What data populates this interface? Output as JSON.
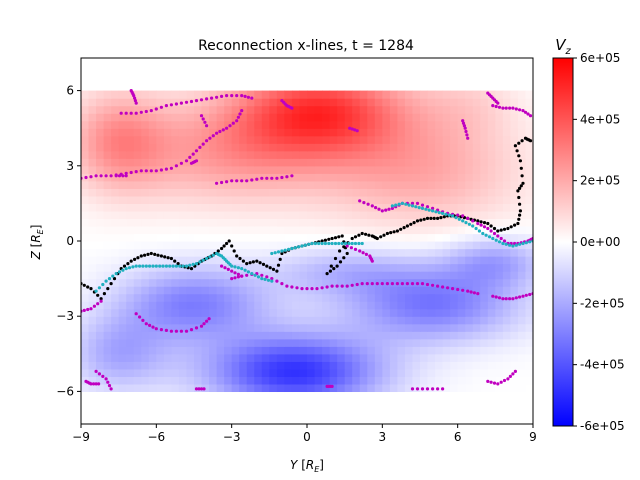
{
  "chart_data": {
    "type": "heatmap",
    "title": "Reconnection x-lines, t = 1284",
    "xlabel": "Y [R_E]",
    "ylabel": "Z [R_E]",
    "xlim": [
      -9,
      9
    ],
    "ylim": [
      -7.3,
      7.3
    ],
    "field_extent": {
      "y": [
        -9,
        9
      ],
      "z": [
        -6,
        6
      ]
    },
    "xticks": [
      -9,
      -6,
      -3,
      0,
      3,
      6,
      9
    ],
    "xtick_labels": [
      "−9",
      "−6",
      "−3",
      "0",
      "3",
      "6",
      "9"
    ],
    "yticks": [
      6,
      3,
      0,
      -3,
      -6
    ],
    "ytick_labels": [
      "6",
      "3",
      "0",
      "−3",
      "−6"
    ],
    "colorbar": {
      "label": "V_z",
      "colormap": "bwr",
      "min": -600000,
      "max": 600000,
      "ticks": [
        600000,
        400000,
        200000,
        0,
        -200000,
        -400000,
        -600000
      ],
      "tick_labels": [
        "6e+05",
        "4e+05",
        "2e+05",
        "0e+00",
        "-2e+05",
        "-4e+05",
        "-6e+05"
      ]
    },
    "colors": {
      "negative": "#0000ff",
      "zero": "#ffffff",
      "positive": "#ff0000"
    },
    "field_features": [
      {
        "y": 0.5,
        "z": 5.2,
        "value": 450000,
        "width": 3.5,
        "height": 1.8
      },
      {
        "y": -3.0,
        "z": 3.5,
        "value": 220000,
        "width": 4.0,
        "height": 2.0
      },
      {
        "y": 4.5,
        "z": 2.8,
        "value": 200000,
        "width": 4.0,
        "height": 2.2
      },
      {
        "y": -7.5,
        "z": 4.0,
        "value": 250000,
        "width": 2.0,
        "height": 2.0
      },
      {
        "y": 6.5,
        "z": 5.5,
        "value": 80000,
        "width": 2.0,
        "height": 1.5
      },
      {
        "y": -0.5,
        "z": -5.2,
        "value": -480000,
        "width": 3.5,
        "height": 1.5
      },
      {
        "y": -4.5,
        "z": -2.5,
        "value": -300000,
        "width": 3.0,
        "height": 1.5
      },
      {
        "y": 5.0,
        "z": -2.5,
        "value": -320000,
        "width": 3.5,
        "height": 1.5
      },
      {
        "y": 1.5,
        "z": -1.2,
        "value": -150000,
        "width": 3.0,
        "height": 1.0
      },
      {
        "y": 7.5,
        "z": -0.8,
        "value": -200000,
        "width": 2.0,
        "height": 1.0
      },
      {
        "y": -7.5,
        "z": -4.5,
        "value": -200000,
        "width": 2.0,
        "height": 1.5
      }
    ],
    "series": [
      {
        "color": "#000000",
        "points": [
          [
            -9.0,
            -1.7
          ],
          [
            -8.6,
            -1.9
          ],
          [
            -8.2,
            -2.3
          ],
          [
            -7.8,
            -1.7
          ],
          [
            -7.4,
            -1.1
          ],
          [
            -7.0,
            -0.8
          ],
          [
            -6.6,
            -0.6
          ],
          [
            -6.2,
            -0.5
          ],
          [
            -5.8,
            -0.6
          ],
          [
            -5.4,
            -0.7
          ],
          [
            -5.0,
            -1.0
          ],
          [
            -4.6,
            -1.1
          ],
          [
            -4.2,
            -0.8
          ],
          [
            -3.8,
            -0.6
          ],
          [
            -3.4,
            -0.3
          ],
          [
            -3.1,
            0.0
          ],
          [
            -2.8,
            -0.6
          ],
          [
            -2.4,
            -0.9
          ],
          [
            -2.0,
            -0.8
          ],
          [
            -1.6,
            -1.0
          ],
          [
            -1.2,
            -1.2
          ],
          [
            -1.0,
            -0.5
          ],
          [
            -0.6,
            -0.3
          ],
          [
            -0.2,
            -0.2
          ],
          [
            0.2,
            -0.1
          ],
          [
            0.6,
            0.0
          ],
          [
            1.0,
            0.1
          ],
          [
            1.4,
            0.2
          ],
          [
            1.6,
            -0.5
          ],
          [
            1.2,
            -1.0
          ],
          [
            0.8,
            -1.3
          ],
          [
            1.3,
            -0.4
          ],
          [
            1.8,
            0.1
          ],
          [
            2.2,
            0.3
          ],
          [
            2.6,
            0.2
          ],
          [
            2.8,
            0.1
          ],
          [
            3.2,
            0.3
          ],
          [
            3.6,
            0.4
          ],
          [
            4.0,
            0.6
          ],
          [
            4.4,
            0.8
          ],
          [
            4.8,
            0.9
          ],
          [
            5.2,
            0.9
          ],
          [
            5.6,
            1.0
          ],
          [
            6.0,
            1.0
          ],
          [
            6.4,
            0.9
          ],
          [
            6.8,
            0.8
          ],
          [
            7.2,
            0.7
          ],
          [
            7.6,
            0.4
          ],
          [
            8.0,
            0.5
          ],
          [
            8.4,
            0.7
          ],
          [
            8.5,
            1.2
          ],
          [
            8.4,
            2.0
          ],
          [
            8.6,
            2.3
          ],
          [
            8.5,
            3.2
          ],
          [
            8.3,
            3.8
          ],
          [
            8.7,
            4.1
          ],
          [
            8.9,
            4.0
          ]
        ]
      },
      {
        "color": "#c000c0",
        "points": [
          [
            -9.0,
            2.5
          ],
          [
            -8.4,
            2.6
          ],
          [
            -7.8,
            2.6
          ],
          [
            -7.2,
            2.7
          ],
          [
            -6.6,
            2.8
          ],
          [
            -6.0,
            2.8
          ],
          [
            -5.4,
            2.9
          ],
          [
            -4.8,
            3.2
          ],
          [
            -4.4,
            3.6
          ],
          [
            -4.0,
            4.0
          ],
          [
            -3.6,
            4.3
          ],
          [
            -3.2,
            4.5
          ],
          [
            -2.8,
            4.8
          ],
          [
            -2.6,
            5.2
          ]
        ]
      },
      {
        "color": "#c000c0",
        "points": [
          [
            -7.4,
            5.1
          ],
          [
            -6.8,
            5.1
          ],
          [
            -6.2,
            5.2
          ],
          [
            -5.6,
            5.4
          ],
          [
            -5.0,
            5.5
          ],
          [
            -4.4,
            5.6
          ],
          [
            -3.8,
            5.7
          ],
          [
            -3.2,
            5.8
          ],
          [
            -2.6,
            5.8
          ],
          [
            -2.2,
            5.7
          ]
        ]
      },
      {
        "color": "#c000c0",
        "points": [
          [
            -3.6,
            2.3
          ],
          [
            -3.0,
            2.4
          ],
          [
            -2.4,
            2.4
          ],
          [
            -1.8,
            2.5
          ],
          [
            -1.2,
            2.5
          ],
          [
            -0.6,
            2.6
          ]
        ]
      },
      {
        "color": "#c000c0",
        "points": [
          [
            2.1,
            1.6
          ],
          [
            2.6,
            1.4
          ],
          [
            3.0,
            1.2
          ],
          [
            3.4,
            1.3
          ],
          [
            3.8,
            1.5
          ],
          [
            4.4,
            1.5
          ],
          [
            5.0,
            1.3
          ],
          [
            5.6,
            1.1
          ],
          [
            6.2,
            1.0
          ],
          [
            6.8,
            0.7
          ],
          [
            7.2,
            0.5
          ],
          [
            7.6,
            0.2
          ],
          [
            8.0,
            -0.1
          ],
          [
            8.4,
            -0.1
          ],
          [
            8.8,
            0.0
          ],
          [
            9.0,
            0.1
          ]
        ]
      },
      {
        "color": "#c000c0",
        "points": [
          [
            -3.0,
            -1.5
          ],
          [
            -2.6,
            -1.4
          ],
          [
            -2.0,
            -1.3
          ],
          [
            -1.4,
            -1.5
          ],
          [
            -0.8,
            -1.8
          ],
          [
            -0.2,
            -1.9
          ],
          [
            0.4,
            -1.9
          ],
          [
            1.0,
            -1.8
          ],
          [
            1.6,
            -1.8
          ],
          [
            2.2,
            -1.7
          ],
          [
            2.8,
            -1.7
          ],
          [
            3.4,
            -1.7
          ],
          [
            4.0,
            -1.7
          ],
          [
            4.6,
            -1.7
          ],
          [
            5.2,
            -1.8
          ],
          [
            5.8,
            -1.9
          ],
          [
            6.4,
            -2.0
          ],
          [
            6.8,
            -2.1
          ]
        ]
      },
      {
        "color": "#c000c0",
        "points": [
          [
            -6.8,
            -2.9
          ],
          [
            -6.4,
            -3.3
          ],
          [
            -6.0,
            -3.5
          ],
          [
            -5.4,
            -3.6
          ],
          [
            -4.8,
            -3.6
          ],
          [
            -4.2,
            -3.4
          ],
          [
            -3.9,
            -3.1
          ]
        ]
      },
      {
        "color": "#c000c0",
        "points": [
          [
            7.4,
            -2.2
          ],
          [
            7.8,
            -2.3
          ],
          [
            8.2,
            -2.3
          ],
          [
            8.6,
            -2.2
          ],
          [
            9.0,
            -2.1
          ]
        ]
      },
      {
        "color": "#c000c0",
        "points": [
          [
            -9.0,
            -2.8
          ],
          [
            -8.6,
            -2.7
          ],
          [
            -8.2,
            -2.4
          ]
        ]
      },
      {
        "color": "#c000c0",
        "points": [
          [
            6.2,
            4.8
          ],
          [
            6.3,
            4.5
          ],
          [
            6.4,
            4.1
          ]
        ]
      },
      {
        "color": "#c000c0",
        "points": [
          [
            7.4,
            5.4
          ],
          [
            7.8,
            5.3
          ],
          [
            8.2,
            5.3
          ],
          [
            8.6,
            5.2
          ],
          [
            8.9,
            5.0
          ]
        ]
      },
      {
        "color": "#c000c0",
        "points": [
          [
            7.2,
            5.9
          ],
          [
            7.4,
            5.7
          ],
          [
            7.6,
            5.5
          ]
        ]
      },
      {
        "color": "#c000c0",
        "points": [
          [
            -6.8,
            5.5
          ],
          [
            -6.9,
            5.8
          ],
          [
            -7.0,
            6.0
          ]
        ]
      },
      {
        "color": "#c000c0",
        "points": [
          [
            -8.4,
            -5.2
          ],
          [
            -8.0,
            -5.5
          ],
          [
            -7.8,
            -5.9
          ]
        ]
      },
      {
        "color": "#c000c0",
        "points": [
          [
            7.2,
            -5.6
          ],
          [
            7.6,
            -5.7
          ],
          [
            8.0,
            -5.5
          ],
          [
            8.3,
            -5.2
          ]
        ]
      },
      {
        "color": "#c000c0",
        "points": [
          [
            4.2,
            -5.9
          ],
          [
            4.8,
            -5.9
          ],
          [
            5.4,
            -5.9
          ]
        ]
      },
      {
        "color": "#c000c0",
        "points": [
          [
            -8.8,
            -5.6
          ],
          [
            -8.6,
            -5.7
          ],
          [
            -8.3,
            -5.7
          ]
        ]
      },
      {
        "color": "#c000c0",
        "points": [
          [
            1.6,
            -0.2
          ],
          [
            2.1,
            -0.4
          ],
          [
            2.5,
            -0.6
          ],
          [
            2.6,
            -0.8
          ]
        ]
      },
      {
        "color": "#c000c0",
        "points": [
          [
            -3.4,
            -1.0
          ],
          [
            -3.0,
            -1.2
          ],
          [
            -2.6,
            -1.4
          ]
        ]
      },
      {
        "color": "#c000c0",
        "points": [
          [
            -1.0,
            5.6
          ],
          [
            -0.8,
            5.4
          ],
          [
            -0.6,
            5.3
          ]
        ]
      },
      {
        "color": "#c000c0",
        "points": [
          [
            -4.6,
            3.1
          ],
          [
            -4.4,
            3.2
          ]
        ]
      },
      {
        "color": "#c000c0",
        "points": [
          [
            -7.6,
            2.6
          ],
          [
            -7.2,
            2.6
          ]
        ]
      },
      {
        "color": "#c000c0",
        "points": [
          [
            1.7,
            4.5
          ],
          [
            2.0,
            4.4
          ]
        ]
      },
      {
        "color": "#c000c0",
        "points": [
          [
            -4.2,
            5.0
          ],
          [
            -4.0,
            4.6
          ]
        ]
      },
      {
        "color": "#c000c0",
        "points": [
          [
            -4.4,
            -5.9
          ],
          [
            -4.1,
            -5.9
          ]
        ]
      },
      {
        "color": "#c000c0",
        "points": [
          [
            0.8,
            -5.8
          ],
          [
            1.0,
            -5.8
          ]
        ]
      },
      {
        "color": "#20b0c0",
        "points": [
          [
            -8.4,
            -2.0
          ],
          [
            -8.0,
            -1.6
          ],
          [
            -7.6,
            -1.3
          ],
          [
            -7.2,
            -1.1
          ],
          [
            -6.8,
            -1.0
          ],
          [
            -6.4,
            -1.0
          ],
          [
            -6.0,
            -1.0
          ],
          [
            -5.6,
            -1.0
          ],
          [
            -5.2,
            -1.0
          ],
          [
            -4.8,
            -1.0
          ],
          [
            -4.4,
            -0.9
          ],
          [
            -4.0,
            -0.7
          ],
          [
            -3.6,
            -0.5
          ],
          [
            -3.4,
            -0.6
          ],
          [
            -3.2,
            -0.8
          ],
          [
            -3.0,
            -1.0
          ],
          [
            -2.6,
            -1.1
          ],
          [
            -2.2,
            -1.3
          ],
          [
            -1.8,
            -1.5
          ],
          [
            -1.4,
            -1.6
          ]
        ]
      },
      {
        "color": "#20b0c0",
        "points": [
          [
            -1.4,
            -0.5
          ],
          [
            -1.0,
            -0.4
          ],
          [
            -0.6,
            -0.3
          ],
          [
            -0.2,
            -0.2
          ],
          [
            0.2,
            -0.1
          ],
          [
            0.6,
            -0.1
          ],
          [
            1.0,
            -0.1
          ],
          [
            1.4,
            -0.1
          ],
          [
            1.8,
            -0.1
          ],
          [
            2.2,
            -0.1
          ]
        ]
      },
      {
        "color": "#20b0c0",
        "points": [
          [
            3.4,
            1.4
          ],
          [
            3.8,
            1.5
          ],
          [
            4.2,
            1.4
          ],
          [
            4.6,
            1.3
          ],
          [
            5.0,
            1.2
          ],
          [
            5.4,
            1.1
          ],
          [
            5.8,
            1.0
          ],
          [
            6.2,
            0.8
          ],
          [
            6.6,
            0.6
          ],
          [
            7.0,
            0.3
          ],
          [
            7.4,
            0.1
          ],
          [
            7.8,
            -0.1
          ],
          [
            8.2,
            -0.2
          ],
          [
            8.6,
            -0.1
          ],
          [
            9.0,
            0.0
          ]
        ]
      }
    ]
  }
}
